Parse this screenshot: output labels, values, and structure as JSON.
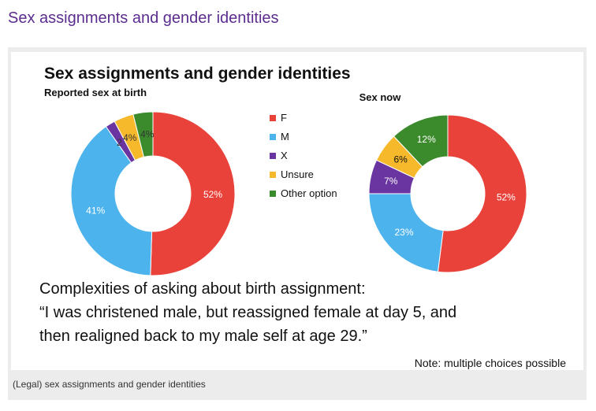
{
  "page": {
    "heading": "Sex assignments and gender identities",
    "caption": "(Legal) sex assignments and gender identities"
  },
  "slide": {
    "title": "Sex assignments and gender identities",
    "quote_intro": "Complexities of asking about birth assignment:",
    "quote_line1": "“I was christened male, but reassigned female at day 5, and",
    "quote_line2": "then realigned back to my male self at age 29.”",
    "note": "Note: multiple choices possible"
  },
  "chart_data": [
    {
      "type": "pie",
      "subtype": "donut",
      "title": "Reported sex at birth",
      "categories": [
        "F",
        "M",
        "X",
        "Unsure",
        "Other option"
      ],
      "values": [
        52,
        41,
        2,
        4,
        4
      ],
      "labels": [
        "52%",
        "41%",
        "2",
        "4%",
        "4%"
      ],
      "colors": [
        "#e8423a",
        "#4db3ec",
        "#6a35a0",
        "#f6b92c",
        "#3b8a2c"
      ],
      "legend": "between charts"
    },
    {
      "type": "pie",
      "subtype": "donut",
      "title": "Sex now",
      "categories": [
        "F",
        "M",
        "X",
        "Unsure",
        "Other option"
      ],
      "values": [
        52,
        23,
        7,
        6,
        12
      ],
      "labels": [
        "52%",
        "23%",
        "7%",
        "6%",
        "12%"
      ],
      "colors": [
        "#e8423a",
        "#4db3ec",
        "#6a35a0",
        "#f6b92c",
        "#3b8a2c"
      ],
      "legend": "between charts"
    }
  ],
  "legend": {
    "items": [
      "F",
      "M",
      "X",
      "Unsure",
      "Other option"
    ],
    "colors": [
      "#e8423a",
      "#4db3ec",
      "#6a35a0",
      "#f6b92c",
      "#3b8a2c"
    ]
  }
}
